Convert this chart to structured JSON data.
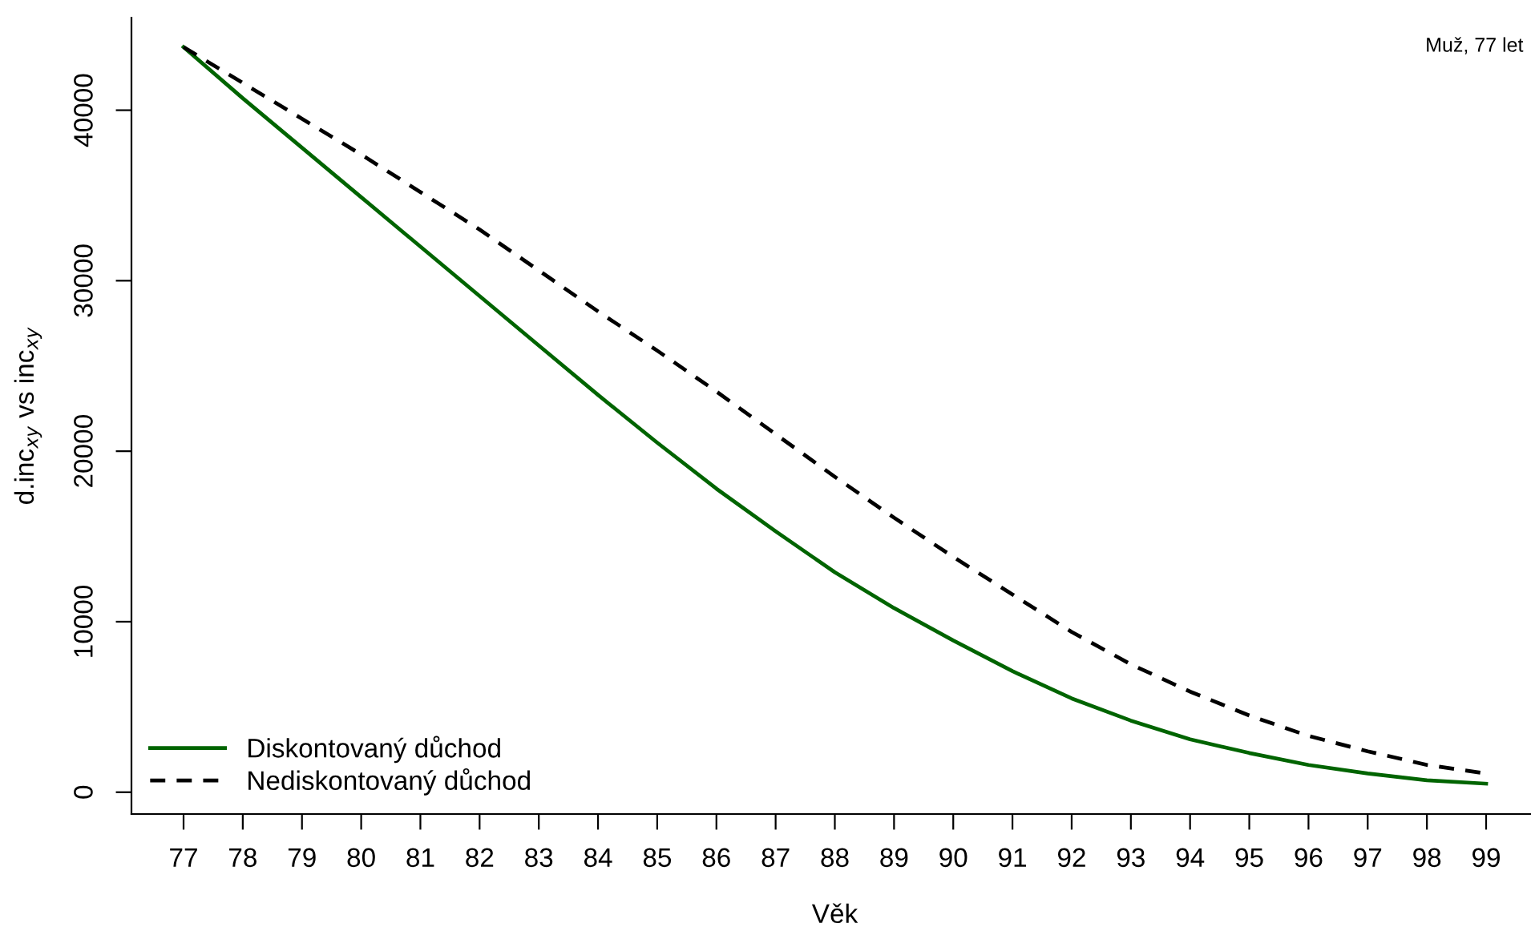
{
  "chart_data": {
    "type": "line",
    "xlabel": "Věk",
    "ylabel": "d.inc$_{xy}$ vs inc$_{xy}$",
    "annotations": [
      "Muž, 77 let"
    ],
    "x": [
      77,
      78,
      79,
      80,
      81,
      82,
      83,
      84,
      85,
      86,
      87,
      88,
      89,
      90,
      91,
      92,
      93,
      94,
      95,
      96,
      97,
      98,
      99
    ],
    "series": [
      {
        "name": "Diskontovaný důchod",
        "color": "#006400",
        "line_style": "solid",
        "values": [
          43700,
          40700,
          37800,
          34900,
          32000,
          29100,
          26200,
          23300,
          20500,
          17800,
          15300,
          12900,
          10800,
          8900,
          7100,
          5500,
          4200,
          3100,
          2300,
          1600,
          1100,
          700,
          500
        ]
      },
      {
        "name": "Nediskontovaný důchod",
        "color": "#000000",
        "line_style": "dashed",
        "values": [
          43700,
          41600,
          39500,
          37400,
          35200,
          33000,
          30600,
          28200,
          25900,
          23500,
          21000,
          18500,
          16100,
          13800,
          11600,
          9400,
          7500,
          5900,
          4500,
          3300,
          2400,
          1600,
          1100
        ]
      }
    ],
    "xlim": [
      76.12,
      99.88
    ],
    "ylim": [
      -1280,
      45430
    ],
    "xticks": [
      77,
      78,
      79,
      80,
      81,
      82,
      83,
      84,
      85,
      86,
      87,
      88,
      89,
      90,
      91,
      92,
      93,
      94,
      95,
      96,
      97,
      98,
      99
    ],
    "yticks": [
      0,
      10000,
      20000,
      30000,
      40000
    ],
    "grid": false,
    "legend": "bottom left",
    "marker": "none"
  }
}
